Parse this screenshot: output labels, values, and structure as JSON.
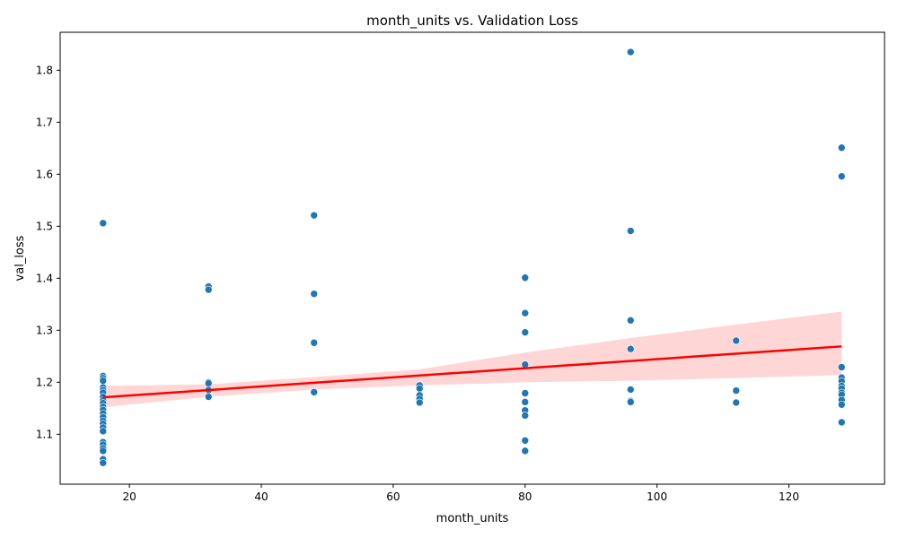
{
  "chart_data": {
    "type": "scatter",
    "title": "month_units vs. Validation Loss",
    "xlabel": "month_units",
    "ylabel": "val_loss",
    "xlim": [
      9.5,
      134.5
    ],
    "ylim": [
      1.004,
      1.873
    ],
    "xticks": [
      20,
      40,
      60,
      80,
      100,
      120
    ],
    "yticks": [
      1.1,
      1.2,
      1.3,
      1.4,
      1.5,
      1.6,
      1.7,
      1.8
    ],
    "xtick_labels": [
      "20",
      "40",
      "60",
      "80",
      "100",
      "120"
    ],
    "ytick_labels": [
      "1.1",
      "1.2",
      "1.3",
      "1.4",
      "1.5",
      "1.6",
      "1.7",
      "1.8"
    ],
    "grid": false,
    "point_color": "#1f77b4",
    "regression_color": "#ff0000",
    "ci_color": "#ffd6d6",
    "regression_line": {
      "x": [
        16,
        128
      ],
      "y": [
        1.171,
        1.269
      ]
    },
    "confidence_band": {
      "x": [
        16,
        32,
        48,
        64,
        80,
        96,
        112,
        128
      ],
      "lower": [
        1.152,
        1.172,
        1.186,
        1.194,
        1.2,
        1.203,
        1.208,
        1.214
      ],
      "upper": [
        1.193,
        1.196,
        1.21,
        1.225,
        1.257,
        1.285,
        1.311,
        1.336
      ]
    },
    "series": [
      {
        "points": [
          [
            16,
            1.506
          ],
          [
            16,
            1.212
          ],
          [
            16,
            1.208
          ],
          [
            16,
            1.203
          ],
          [
            16,
            1.19
          ],
          [
            16,
            1.185
          ],
          [
            16,
            1.18
          ],
          [
            16,
            1.172
          ],
          [
            16,
            1.165
          ],
          [
            16,
            1.16
          ],
          [
            16,
            1.153
          ],
          [
            16,
            1.147
          ],
          [
            16,
            1.14
          ],
          [
            16,
            1.133
          ],
          [
            16,
            1.126
          ],
          [
            16,
            1.12
          ],
          [
            16,
            1.113
          ],
          [
            16,
            1.106
          ],
          [
            16,
            1.085
          ],
          [
            16,
            1.08
          ],
          [
            16,
            1.073
          ],
          [
            16,
            1.068
          ],
          [
            16,
            1.052
          ],
          [
            16,
            1.045
          ],
          [
            32,
            1.384
          ],
          [
            32,
            1.378
          ],
          [
            32,
            1.2
          ],
          [
            32,
            1.198
          ],
          [
            32,
            1.185
          ],
          [
            32,
            1.172
          ],
          [
            48,
            1.521
          ],
          [
            48,
            1.37
          ],
          [
            48,
            1.276
          ],
          [
            48,
            1.181
          ],
          [
            64,
            1.194
          ],
          [
            64,
            1.188
          ],
          [
            64,
            1.175
          ],
          [
            64,
            1.168
          ],
          [
            64,
            1.161
          ],
          [
            80,
            1.401
          ],
          [
            80,
            1.333
          ],
          [
            80,
            1.296
          ],
          [
            80,
            1.234
          ],
          [
            80,
            1.179
          ],
          [
            80,
            1.162
          ],
          [
            80,
            1.146
          ],
          [
            80,
            1.136
          ],
          [
            80,
            1.088
          ],
          [
            80,
            1.068
          ],
          [
            96,
            1.835
          ],
          [
            96,
            1.491
          ],
          [
            96,
            1.319
          ],
          [
            96,
            1.264
          ],
          [
            96,
            1.186
          ],
          [
            96,
            1.164
          ],
          [
            96,
            1.162
          ],
          [
            112,
            1.28
          ],
          [
            112,
            1.184
          ],
          [
            112,
            1.161
          ],
          [
            128,
            1.651
          ],
          [
            128,
            1.596
          ],
          [
            128,
            1.229
          ],
          [
            128,
            1.209
          ],
          [
            128,
            1.202
          ],
          [
            128,
            1.193
          ],
          [
            128,
            1.188
          ],
          [
            128,
            1.18
          ],
          [
            128,
            1.176
          ],
          [
            128,
            1.166
          ],
          [
            128,
            1.157
          ],
          [
            128,
            1.123
          ]
        ]
      }
    ]
  }
}
